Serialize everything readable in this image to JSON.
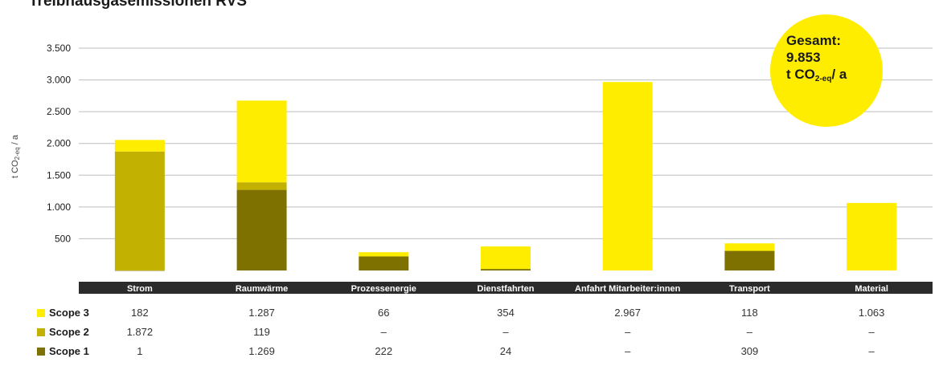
{
  "title": "Treibhausgasemissionen RVS",
  "total": {
    "label": "Gesamt:",
    "value": "9.853",
    "unit_prefix": "t CO",
    "unit_sub": "2-eq",
    "unit_suffix": "/ a"
  },
  "colors": {
    "scope1": "#7f7100",
    "scope2": "#c2b100",
    "scope3": "#ffed00",
    "axis_band": "#2b2b2b",
    "grid": "#bdbdbd",
    "badge": "#ffed00"
  },
  "chart_data": {
    "type": "bar",
    "stacked": true,
    "title": "Treibhausgasemissionen RVS",
    "ylabel_prefix": "t CO",
    "ylabel_sub": "2-eq",
    "ylabel_suffix": " / a",
    "ylim": [
      0,
      3500
    ],
    "yticks": [
      500,
      1000,
      1500,
      2000,
      2500,
      3000,
      3500
    ],
    "ytick_labels": [
      "500",
      "1.000",
      "1.500",
      "2.000",
      "2.500",
      "3.000",
      "3.500"
    ],
    "grid": true,
    "categories": [
      "Strom",
      "Raumwärme",
      "Prozessenergie",
      "Dienstfahrten",
      "Anfahrt Mitarbeiter:innen",
      "Transport",
      "Material"
    ],
    "series": [
      {
        "name": "Scope 1",
        "color_key": "scope1",
        "values": [
          1,
          1269,
          222,
          24,
          0,
          309,
          0
        ],
        "labels": [
          "1",
          "1.269",
          "222",
          "24",
          "–",
          "309",
          "–"
        ]
      },
      {
        "name": "Scope 2",
        "color_key": "scope2",
        "values": [
          1872,
          119,
          0,
          0,
          0,
          0,
          0
        ],
        "labels": [
          "1.872",
          "119",
          "–",
          "–",
          "–",
          "–",
          "–"
        ]
      },
      {
        "name": "Scope 3",
        "color_key": "scope3",
        "values": [
          182,
          1287,
          66,
          354,
          2967,
          118,
          1063
        ],
        "labels": [
          "182",
          "1.287",
          "66",
          "354",
          "2.967",
          "118",
          "1.063"
        ]
      }
    ]
  }
}
